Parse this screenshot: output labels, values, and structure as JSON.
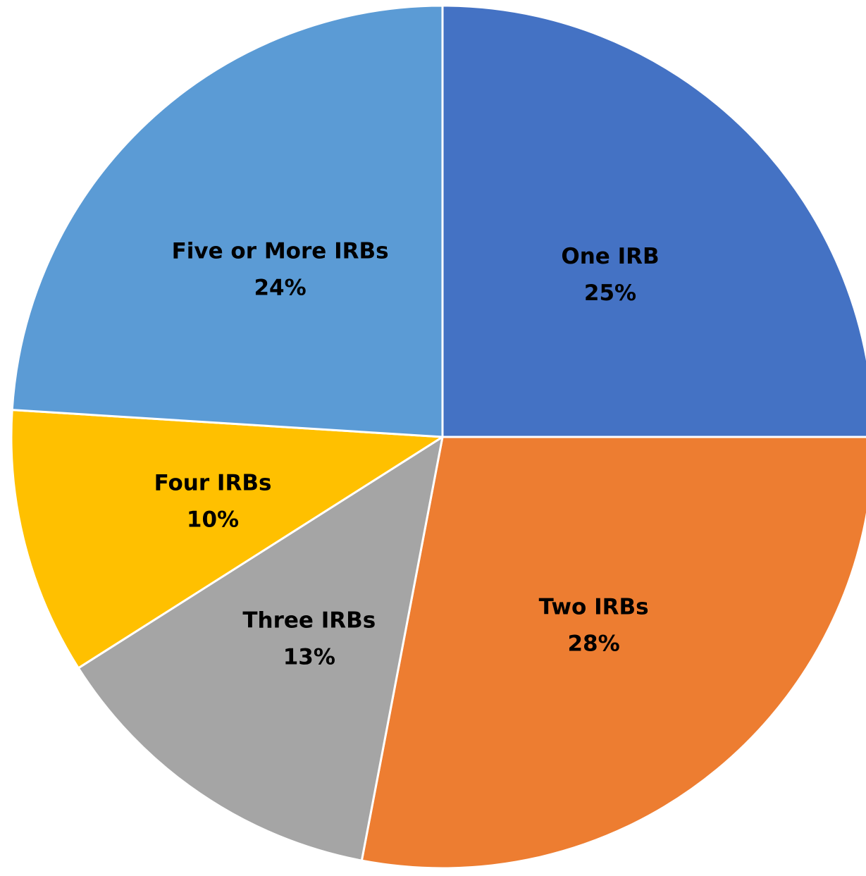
{
  "chart_data": {
    "type": "pie",
    "title": "",
    "slices": [
      {
        "label": "One IRB",
        "value": 25,
        "value_label": "25%",
        "color": "#4472C4"
      },
      {
        "label": "Two IRBs",
        "value": 28,
        "value_label": "28%",
        "color": "#ED7D31"
      },
      {
        "label": "Three IRBs",
        "value": 13,
        "value_label": "13%",
        "color": "#A5A5A5"
      },
      {
        "label": "Four IRBs",
        "value": 10,
        "value_label": "10%",
        "color": "#FFC000"
      },
      {
        "label": "Five or More IRBs",
        "value": 24,
        "value_label": "24%",
        "color": "#5B9BD5"
      }
    ],
    "start_angle": "12 o'clock",
    "direction": "clockwise",
    "legend": "none",
    "data_labels": "inside, category name and percentage"
  }
}
